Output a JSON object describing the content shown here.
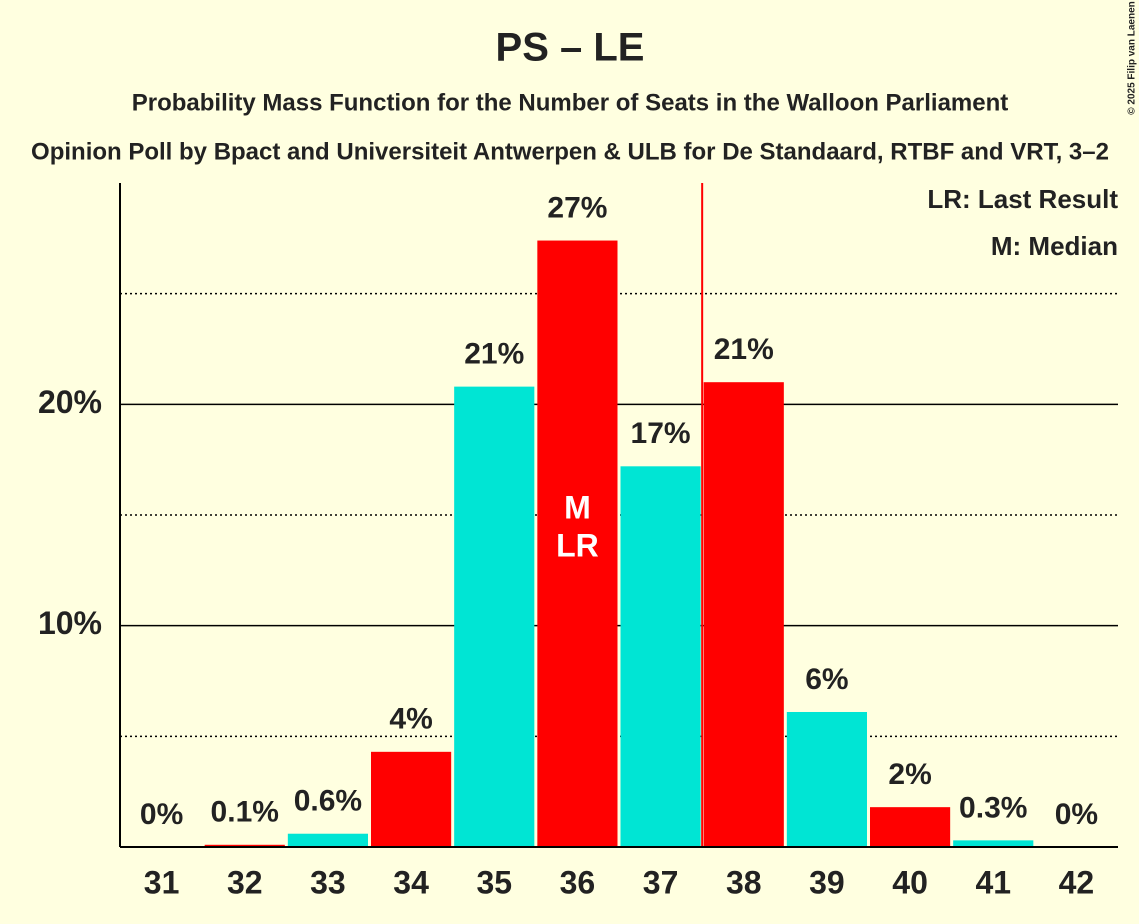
{
  "chart_data": {
    "type": "bar",
    "title": "PS – LE",
    "subtitle": "Probability Mass Function for the Number of Seats in the Walloon Parliament",
    "subtitle2": "Opinion Poll by Bpact and Universiteit Antwerpen & ULB for De Standaard, RTBF and VRT, 3–2",
    "copyright": "© 2025 Filip van Laenen",
    "categories": [
      31,
      32,
      33,
      34,
      35,
      36,
      37,
      38,
      39,
      40,
      41,
      42
    ],
    "values": [
      0,
      0.1,
      0.6,
      4.3,
      20.8,
      27.4,
      17.2,
      21.0,
      6.1,
      1.8,
      0.3,
      0
    ],
    "value_labels": [
      "0%",
      "0.1%",
      "0.6%",
      "4%",
      "21%",
      "27%",
      "17%",
      "21%",
      "6%",
      "2%",
      "0.3%",
      "0%"
    ],
    "colors": [
      "#00e5d4",
      "#ff0000",
      "#00e5d4",
      "#ff0000",
      "#00e5d4",
      "#ff0000",
      "#00e5d4",
      "#ff0000",
      "#00e5d4",
      "#ff0000",
      "#00e5d4",
      "#ff0000"
    ],
    "ylim": [
      0,
      30
    ],
    "yticks": [
      {
        "value": 10,
        "label": "10%"
      },
      {
        "value": 20,
        "label": "20%"
      }
    ],
    "minor_yticks": [
      5,
      15,
      25
    ],
    "grid": true,
    "vertical_line": {
      "x": 37.5,
      "color": "#ff0000"
    },
    "annotations": [
      {
        "text": "M",
        "category": 36
      },
      {
        "text": "LR",
        "category": 36
      }
    ],
    "legend": [
      "LR: Last Result",
      "M: Median"
    ],
    "legend_position": "upper right"
  }
}
